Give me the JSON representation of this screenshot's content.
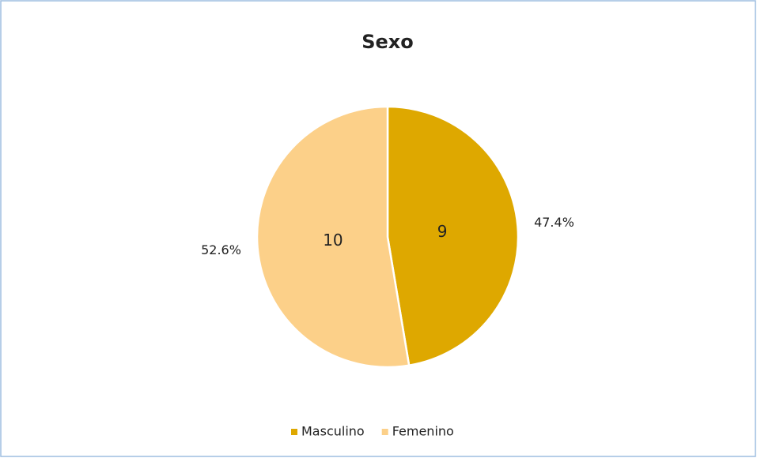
{
  "chart_data": {
    "type": "pie",
    "title": "Sexo",
    "categories": [
      "Masculino",
      "Femenino"
    ],
    "series": [
      {
        "name": "Sexo",
        "values": [
          9,
          10
        ],
        "colors": [
          "#dea800",
          "#fcd089"
        ]
      }
    ],
    "percent_labels": [
      "47.4%",
      "52.6%"
    ],
    "legend": "bottom"
  }
}
